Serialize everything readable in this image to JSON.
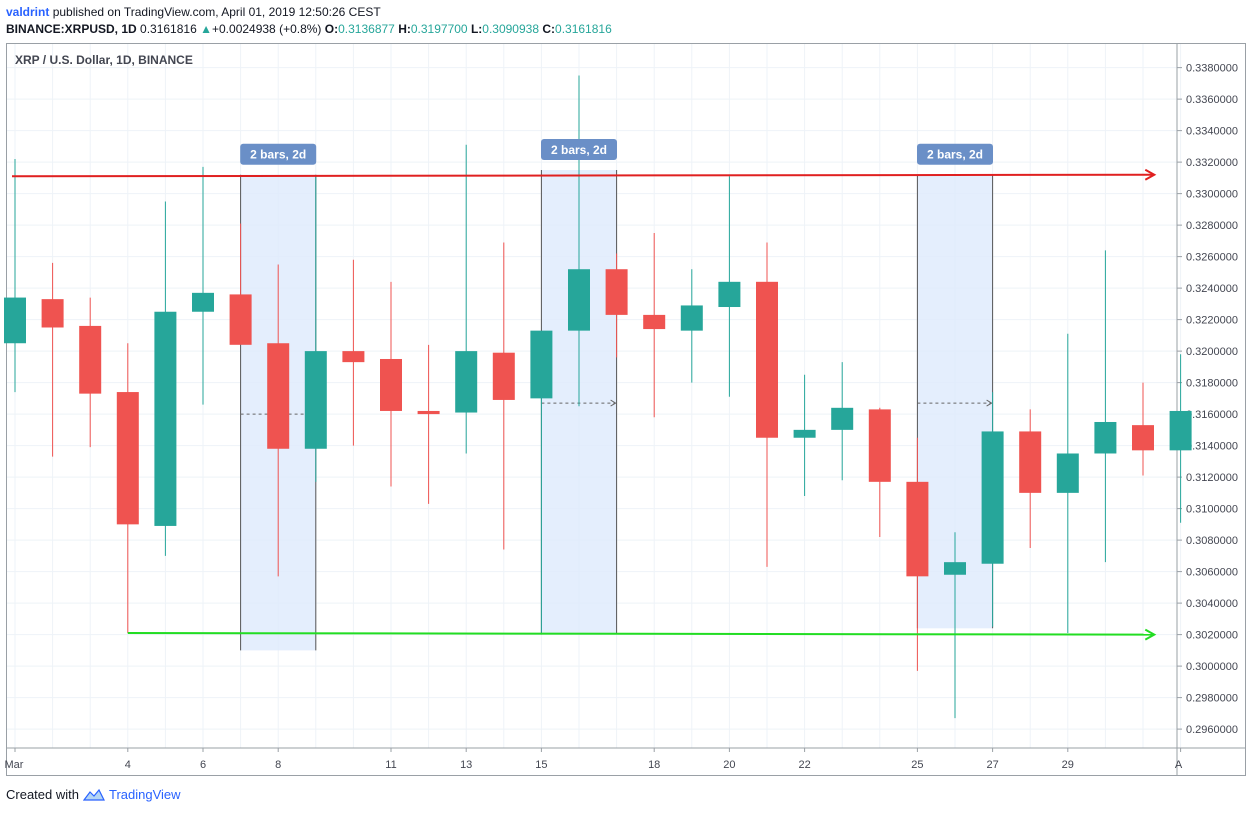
{
  "header": {
    "author": "valdrint",
    "published_text": "published on TradingView.com, April 01, 2019 12:50:26 CEST",
    "symbol": "BINANCE:XRPUSD, 1D",
    "last_price": "0.3161816",
    "change_arrow": "▲",
    "change": "+0.0024938 (+0.8%)",
    "open_label": "O:",
    "open": "0.3136877",
    "high_label": "H:",
    "high": "0.3197700",
    "low_label": "L:",
    "low": "0.3090938",
    "close_label": "C:",
    "close": "0.3161816"
  },
  "footer": {
    "created_with": "Created with",
    "brand": "TradingView"
  },
  "colors": {
    "up": "#26a69a",
    "down": "#ef5350",
    "resistance_line": "#e02020",
    "support_line": "#22dd22",
    "range_fill": "#ddeafc",
    "range_label_bg": "#6a8fc7"
  },
  "chart_data": {
    "type": "candlestick",
    "title": "XRP / U.S. Dollar, 1D, BINANCE",
    "x_tick_labels": [
      "Mar",
      "4",
      "6",
      "8",
      "11",
      "13",
      "15",
      "18",
      "20",
      "22",
      "25",
      "27",
      "29",
      "A"
    ],
    "y_tick_labels": [
      "0.3380000",
      "0.3360000",
      "0.3340000",
      "0.3320000",
      "0.3300000",
      "0.3280000",
      "0.3260000",
      "0.3240000",
      "0.3220000",
      "0.3200000",
      "0.3180000",
      "0.3160000",
      "0.3140000",
      "0.3120000",
      "0.3100000",
      "0.3080000",
      "0.3060000",
      "0.3040000",
      "0.3020000",
      "0.3000000",
      "0.2980000",
      "0.2960000"
    ],
    "ylim": [
      0.2948,
      0.3395
    ],
    "dates": [
      "Mar 1",
      "Mar 2",
      "Mar 3",
      "Mar 4",
      "Mar 5",
      "Mar 6",
      "Mar 7",
      "Mar 8",
      "Mar 9",
      "Mar 10",
      "Mar 11",
      "Mar 12",
      "Mar 13",
      "Mar 14",
      "Mar 15",
      "Mar 16",
      "Mar 17",
      "Mar 18",
      "Mar 19",
      "Mar 20",
      "Mar 21",
      "Mar 22",
      "Mar 23",
      "Mar 24",
      "Mar 25",
      "Mar 26",
      "Mar 27",
      "Mar 28",
      "Mar 29",
      "Mar 30",
      "Mar 31",
      "Apr 1"
    ],
    "candles": [
      {
        "o": 0.3205,
        "h": 0.3322,
        "l": 0.3174,
        "c": 0.3234
      },
      {
        "o": 0.3233,
        "h": 0.3256,
        "l": 0.3133,
        "c": 0.3215
      },
      {
        "o": 0.3216,
        "h": 0.3234,
        "l": 0.3139,
        "c": 0.3173
      },
      {
        "o": 0.3174,
        "h": 0.3205,
        "l": 0.3021,
        "c": 0.309
      },
      {
        "o": 0.3089,
        "h": 0.3295,
        "l": 0.307,
        "c": 0.3225
      },
      {
        "o": 0.3225,
        "h": 0.3317,
        "l": 0.3166,
        "c": 0.3237
      },
      {
        "o": 0.3236,
        "h": 0.3281,
        "l": 0.3205,
        "c": 0.3204
      },
      {
        "o": 0.3205,
        "h": 0.3255,
        "l": 0.3057,
        "c": 0.3138
      },
      {
        "o": 0.3138,
        "h": 0.3311,
        "l": 0.3117,
        "c": 0.32
      },
      {
        "o": 0.32,
        "h": 0.3258,
        "l": 0.314,
        "c": 0.3193
      },
      {
        "o": 0.3195,
        "h": 0.3244,
        "l": 0.3114,
        "c": 0.3162
      },
      {
        "o": 0.3162,
        "h": 0.3204,
        "l": 0.3103,
        "c": 0.316
      },
      {
        "o": 0.3161,
        "h": 0.3331,
        "l": 0.3135,
        "c": 0.32
      },
      {
        "o": 0.3199,
        "h": 0.3269,
        "l": 0.3074,
        "c": 0.3169
      },
      {
        "o": 0.317,
        "h": 0.3212,
        "l": 0.302,
        "c": 0.3213
      },
      {
        "o": 0.3213,
        "h": 0.3375,
        "l": 0.3165,
        "c": 0.3252
      },
      {
        "o": 0.3252,
        "h": 0.3262,
        "l": 0.3196,
        "c": 0.3223
      },
      {
        "o": 0.3223,
        "h": 0.3275,
        "l": 0.3158,
        "c": 0.3214
      },
      {
        "o": 0.3213,
        "h": 0.3252,
        "l": 0.318,
        "c": 0.3229
      },
      {
        "o": 0.3228,
        "h": 0.3311,
        "l": 0.3171,
        "c": 0.3244
      },
      {
        "o": 0.3244,
        "h": 0.3269,
        "l": 0.3063,
        "c": 0.3145
      },
      {
        "o": 0.3145,
        "h": 0.3185,
        "l": 0.3108,
        "c": 0.315
      },
      {
        "o": 0.315,
        "h": 0.3193,
        "l": 0.3118,
        "c": 0.3164
      },
      {
        "o": 0.3163,
        "h": 0.3164,
        "l": 0.3082,
        "c": 0.3117
      },
      {
        "o": 0.3117,
        "h": 0.3145,
        "l": 0.2997,
        "c": 0.3057
      },
      {
        "o": 0.3058,
        "h": 0.3085,
        "l": 0.2967,
        "c": 0.3066
      },
      {
        "o": 0.3065,
        "h": 0.3174,
        "l": 0.3025,
        "c": 0.3149
      },
      {
        "o": 0.3149,
        "h": 0.3163,
        "l": 0.3075,
        "c": 0.311
      },
      {
        "o": 0.311,
        "h": 0.3211,
        "l": 0.3021,
        "c": 0.3135
      },
      {
        "o": 0.3135,
        "h": 0.3264,
        "l": 0.3066,
        "c": 0.3155
      },
      {
        "o": 0.3153,
        "h": 0.318,
        "l": 0.3121,
        "c": 0.3137
      },
      {
        "o": 0.3137,
        "h": 0.3198,
        "l": 0.3091,
        "c": 0.3162
      }
    ],
    "horizontal_lines": [
      {
        "name": "resistance",
        "from_index": 0,
        "to_index": 30.3,
        "y_start": 0.3311,
        "y_end": 0.3312
      },
      {
        "name": "support",
        "from_index": 3,
        "to_index": 30.3,
        "y_start": 0.3021,
        "y_end": 0.302
      }
    ],
    "date_ranges": [
      {
        "label": "2 bars, 2d",
        "from_index": 6,
        "to_index": 8,
        "y_top": 0.3312,
        "y_bottom": 0.301,
        "arrow_y": 0.316
      },
      {
        "label": "2 bars, 2d",
        "from_index": 14,
        "to_index": 16,
        "y_top": 0.3315,
        "y_bottom": 0.3021,
        "arrow_y": 0.3167
      },
      {
        "label": "2 bars, 2d",
        "from_index": 24,
        "to_index": 26,
        "y_top": 0.3312,
        "y_bottom": 0.3024,
        "arrow_y": 0.3167
      }
    ]
  }
}
